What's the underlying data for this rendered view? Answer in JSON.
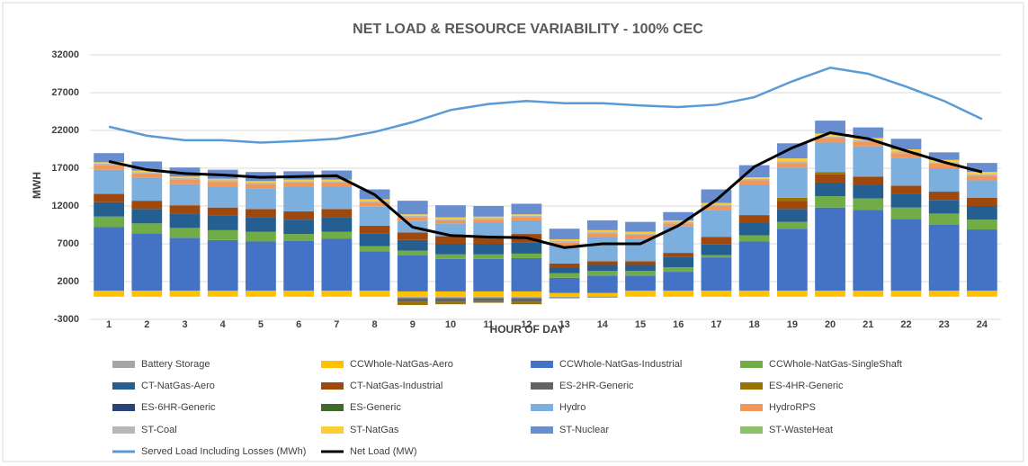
{
  "chart_data": {
    "type": "bar",
    "title": "NET LOAD & RESOURCE VARIABILITY - 100% CEC",
    "x_label": "HOUR OF DAY",
    "y_label": "MWH",
    "categories": [
      "1",
      "2",
      "3",
      "4",
      "5",
      "6",
      "7",
      "8",
      "9",
      "10",
      "11",
      "12",
      "13",
      "14",
      "15",
      "16",
      "17",
      "18",
      "19",
      "20",
      "21",
      "22",
      "23",
      "24"
    ],
    "ylim": [
      -3000,
      32000
    ],
    "yticks": [
      -3000,
      2000,
      7000,
      12000,
      17000,
      22000,
      27000,
      32000
    ],
    "grid": true,
    "series": [
      {
        "name": "Battery Storage",
        "color": "#a5a5a5",
        "values": [
          0,
          0,
          0,
          0,
          0,
          0,
          0,
          0,
          -200,
          -200,
          -200,
          -200,
          -100,
          0,
          0,
          0,
          0,
          0,
          0,
          0,
          0,
          0,
          0,
          0
        ]
      },
      {
        "name": "CCWhole-NatGas-Aero",
        "color": "#ffc000",
        "values": [
          800,
          800,
          800,
          800,
          800,
          800,
          800,
          800,
          700,
          700,
          700,
          700,
          500,
          500,
          800,
          800,
          800,
          800,
          800,
          800,
          800,
          800,
          800,
          800
        ]
      },
      {
        "name": "CCWhole-NatGas-Industrial",
        "color": "#4472c4",
        "values": [
          8400,
          7600,
          7000,
          6700,
          6500,
          6600,
          6900,
          5200,
          4800,
          4300,
          4300,
          4400,
          2000,
          2300,
          2000,
          2500,
          4400,
          6500,
          8200,
          11000,
          10700,
          9500,
          8700,
          8100
        ]
      },
      {
        "name": "CCWhole-NatGas-SingleShaft",
        "color": "#70ad47",
        "values": [
          1400,
          1300,
          1300,
          1300,
          1300,
          900,
          900,
          700,
          600,
          600,
          600,
          600,
          600,
          600,
          600,
          600,
          300,
          800,
          900,
          1500,
          1500,
          1500,
          1500,
          1300
        ]
      },
      {
        "name": "CT-NatGas-Aero",
        "color": "#255e91",
        "values": [
          1900,
          1900,
          1900,
          1900,
          1900,
          1900,
          1900,
          1700,
          1400,
          1400,
          1400,
          1500,
          800,
          800,
          800,
          1400,
          1400,
          1700,
          1700,
          1800,
          1800,
          1800,
          1800,
          1800
        ]
      },
      {
        "name": "CT-NatGas-Industrial",
        "color": "#9e480e",
        "values": [
          1100,
          1100,
          1100,
          1100,
          1100,
          1100,
          1100,
          1000,
          1000,
          1000,
          1000,
          1100,
          500,
          500,
          500,
          500,
          1000,
          1000,
          1100,
          1100,
          1100,
          1100,
          1100,
          1100
        ]
      },
      {
        "name": "ES-2HR-Generic",
        "color": "#636363",
        "values": [
          0,
          0,
          0,
          0,
          0,
          0,
          0,
          0,
          -500,
          -500,
          -400,
          -500,
          -100,
          -100,
          0,
          0,
          0,
          0,
          0,
          0,
          0,
          0,
          0,
          0
        ]
      },
      {
        "name": "ES-4HR-Generic",
        "color": "#997300",
        "values": [
          0,
          0,
          0,
          0,
          0,
          0,
          0,
          0,
          -400,
          -300,
          -200,
          -300,
          0,
          0,
          0,
          0,
          0,
          0,
          400,
          300,
          0,
          0,
          0,
          0
        ]
      },
      {
        "name": "ES-6HR-Generic",
        "color": "#264478",
        "values": [
          0,
          0,
          0,
          0,
          0,
          0,
          0,
          0,
          0,
          0,
          0,
          0,
          0,
          0,
          0,
          0,
          0,
          0,
          0,
          0,
          0,
          0,
          0,
          0
        ]
      },
      {
        "name": "ES-Generic",
        "color": "#43682b",
        "values": [
          0,
          0,
          0,
          0,
          0,
          0,
          0,
          0,
          0,
          0,
          0,
          0,
          0,
          0,
          0,
          0,
          0,
          0,
          0,
          0,
          0,
          0,
          0,
          0
        ]
      },
      {
        "name": "Hydro",
        "color": "#7cafdd",
        "values": [
          3200,
          3000,
          2800,
          2800,
          2700,
          3200,
          2900,
          2500,
          1500,
          1700,
          1800,
          1800,
          2300,
          3200,
          3000,
          3500,
          3600,
          4000,
          4000,
          3900,
          4000,
          3700,
          3100,
          2300
        ]
      },
      {
        "name": "HydroRPS",
        "color": "#f1975a",
        "values": [
          600,
          600,
          600,
          600,
          600,
          600,
          600,
          600,
          500,
          400,
          400,
          400,
          500,
          500,
          500,
          400,
          500,
          600,
          600,
          600,
          600,
          600,
          600,
          600
        ]
      },
      {
        "name": "ST-Coal",
        "color": "#b7b7b7",
        "values": [
          200,
          200,
          200,
          200,
          200,
          200,
          200,
          200,
          200,
          200,
          200,
          200,
          200,
          200,
          200,
          200,
          200,
          200,
          200,
          200,
          200,
          200,
          200,
          200
        ]
      },
      {
        "name": "ST-NatGas",
        "color": "#ffcd33",
        "values": [
          200,
          200,
          200,
          200,
          200,
          200,
          200,
          200,
          200,
          200,
          200,
          200,
          200,
          200,
          200,
          200,
          200,
          200,
          400,
          400,
          300,
          300,
          300,
          300
        ]
      },
      {
        "name": "ST-Nuclear",
        "color": "#698ed0",
        "values": [
          1200,
          1200,
          1200,
          1200,
          1200,
          1100,
          1200,
          1300,
          1800,
          1600,
          1400,
          1400,
          1400,
          1300,
          1300,
          1100,
          1800,
          1600,
          2000,
          1700,
          1400,
          1400,
          1000,
          1200
        ]
      },
      {
        "name": "ST-WasteHeat",
        "color": "#8cc168",
        "values": [
          0,
          0,
          0,
          0,
          0,
          0,
          0,
          0,
          0,
          0,
          0,
          0,
          0,
          0,
          0,
          0,
          0,
          0,
          0,
          0,
          0,
          0,
          0,
          0
        ]
      }
    ],
    "lines": [
      {
        "name": "Served Load Including Losses (MWh)",
        "color": "#5b9bd5",
        "values": [
          22500,
          21300,
          20700,
          20700,
          20400,
          20600,
          20900,
          21800,
          23100,
          24700,
          25500,
          25900,
          25600,
          25600,
          25300,
          25100,
          25400,
          26400,
          28500,
          30300,
          29500,
          27800,
          25900,
          23500
        ]
      },
      {
        "name": "Net Load (MW)",
        "color": "#000000",
        "values": [
          17900,
          16800,
          16300,
          16100,
          15800,
          15900,
          16000,
          13500,
          9200,
          8100,
          7900,
          7800,
          6500,
          7000,
          7000,
          9400,
          12800,
          17200,
          19700,
          21700,
          20900,
          19300,
          17800,
          16500
        ]
      }
    ]
  }
}
